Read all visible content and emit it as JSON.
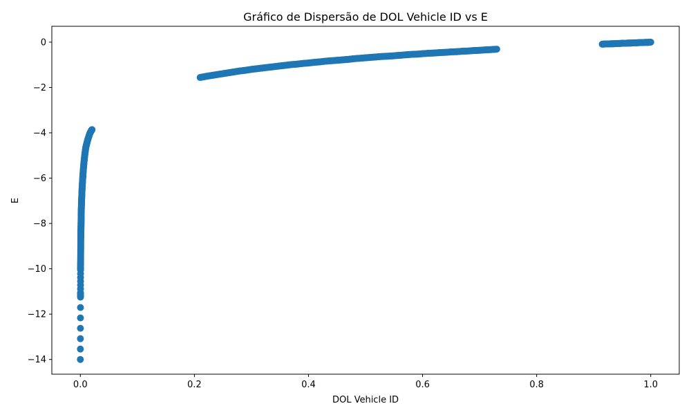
{
  "chart_data": {
    "type": "scatter",
    "title": "Gráfico de Dispersão de DOL Vehicle ID vs E",
    "xlabel": "DOL Vehicle ID",
    "ylabel": "E",
    "xlim": [
      -0.05,
      1.05
    ],
    "ylim": [
      -14.65,
      0.7
    ],
    "xticks": [
      0.0,
      0.2,
      0.4,
      0.6,
      0.8,
      1.0
    ],
    "xtick_labels": [
      "0.0",
      "0.2",
      "0.4",
      "0.6",
      "0.8",
      "1.0"
    ],
    "yticks": [
      0,
      -2,
      -4,
      -6,
      -8,
      -10,
      -12,
      -14
    ],
    "ytick_labels": [
      "0",
      "−2",
      "−4",
      "−6",
      "−8",
      "−10",
      "−12",
      "−14"
    ],
    "grid": false,
    "marker_color": "#1f77b4",
    "series": [
      {
        "values_approx": "three clusters: x≈0–0.02 with E rising from −14 to −3.9; x≈0.21–0.73 with E=ln(x); x≈0.92–1.0 with E≈−0.08 to 0",
        "points": [
          [
            0.0,
            -14.0
          ],
          [
            0.0003,
            -11.25
          ],
          [
            0.0003,
            -11.05
          ],
          [
            0.0004,
            -10.05
          ],
          [
            0.0004,
            -9.9
          ],
          [
            0.0005,
            -9.65
          ],
          [
            0.0006,
            -9.3
          ],
          [
            0.0007,
            -9.0
          ],
          [
            0.0008,
            -8.65
          ],
          [
            0.0009,
            -8.5
          ],
          [
            0.001,
            -8.35
          ],
          [
            0.0011,
            -8.2
          ],
          [
            0.0012,
            -8.05
          ],
          [
            0.0013,
            -7.9
          ],
          [
            0.0014,
            -7.75
          ],
          [
            0.0015,
            -7.6
          ],
          [
            0.0016,
            -7.45
          ],
          [
            0.0018,
            -7.3
          ],
          [
            0.002,
            -7.1
          ],
          [
            0.0022,
            -6.95
          ],
          [
            0.0025,
            -6.8
          ],
          [
            0.0028,
            -6.6
          ],
          [
            0.0031,
            -6.45
          ],
          [
            0.0034,
            -6.3
          ],
          [
            0.0038,
            -6.15
          ],
          [
            0.0042,
            -6.0
          ],
          [
            0.0046,
            -5.85
          ],
          [
            0.005,
            -5.7
          ],
          [
            0.0055,
            -5.55
          ],
          [
            0.006,
            -5.4
          ],
          [
            0.0066,
            -5.25
          ],
          [
            0.0072,
            -5.1
          ],
          [
            0.0079,
            -4.95
          ],
          [
            0.0087,
            -4.8
          ],
          [
            0.0095,
            -4.65
          ],
          [
            0.0105,
            -4.55
          ],
          [
            0.0115,
            -4.45
          ],
          [
            0.0125,
            -4.35
          ],
          [
            0.0137,
            -4.25
          ],
          [
            0.015,
            -4.15
          ],
          [
            0.0163,
            -4.05
          ],
          [
            0.0178,
            -3.97
          ],
          [
            0.0195,
            -3.89
          ],
          [
            0.0205,
            -3.86
          ],
          [
            0.21,
            -1.56
          ],
          [
            0.22,
            -1.51
          ],
          [
            0.23,
            -1.47
          ],
          [
            0.24,
            -1.43
          ],
          [
            0.25,
            -1.39
          ],
          [
            0.26,
            -1.35
          ],
          [
            0.27,
            -1.31
          ],
          [
            0.28,
            -1.27
          ],
          [
            0.29,
            -1.24
          ],
          [
            0.3,
            -1.2
          ],
          [
            0.31,
            -1.17
          ],
          [
            0.32,
            -1.14
          ],
          [
            0.33,
            -1.11
          ],
          [
            0.34,
            -1.08
          ],
          [
            0.35,
            -1.05
          ],
          [
            0.36,
            -1.02
          ],
          [
            0.37,
            -0.99
          ],
          [
            0.38,
            -0.97
          ],
          [
            0.39,
            -0.94
          ],
          [
            0.4,
            -0.92
          ],
          [
            0.41,
            -0.89
          ],
          [
            0.42,
            -0.87
          ],
          [
            0.43,
            -0.84
          ],
          [
            0.44,
            -0.82
          ],
          [
            0.45,
            -0.8
          ],
          [
            0.46,
            -0.78
          ],
          [
            0.47,
            -0.76
          ],
          [
            0.48,
            -0.73
          ],
          [
            0.49,
            -0.71
          ],
          [
            0.5,
            -0.69
          ],
          [
            0.51,
            -0.67
          ],
          [
            0.52,
            -0.65
          ],
          [
            0.53,
            -0.63
          ],
          [
            0.54,
            -0.62
          ],
          [
            0.55,
            -0.6
          ],
          [
            0.56,
            -0.58
          ],
          [
            0.57,
            -0.56
          ],
          [
            0.58,
            -0.54
          ],
          [
            0.59,
            -0.53
          ],
          [
            0.6,
            -0.51
          ],
          [
            0.61,
            -0.49
          ],
          [
            0.62,
            -0.48
          ],
          [
            0.63,
            -0.46
          ],
          [
            0.64,
            -0.45
          ],
          [
            0.65,
            -0.43
          ],
          [
            0.66,
            -0.42
          ],
          [
            0.67,
            -0.4
          ],
          [
            0.68,
            -0.39
          ],
          [
            0.69,
            -0.37
          ],
          [
            0.7,
            -0.36
          ],
          [
            0.71,
            -0.34
          ],
          [
            0.72,
            -0.33
          ],
          [
            0.73,
            -0.31
          ],
          [
            0.915,
            -0.09
          ],
          [
            0.92,
            -0.08
          ],
          [
            0.925,
            -0.08
          ],
          [
            0.93,
            -0.07
          ],
          [
            0.935,
            -0.07
          ],
          [
            0.94,
            -0.06
          ],
          [
            0.945,
            -0.06
          ],
          [
            0.95,
            -0.05
          ],
          [
            0.955,
            -0.05
          ],
          [
            0.96,
            -0.04
          ],
          [
            0.965,
            -0.04
          ],
          [
            0.97,
            -0.03
          ],
          [
            0.975,
            -0.03
          ],
          [
            0.98,
            -0.02
          ],
          [
            0.985,
            -0.02
          ],
          [
            0.99,
            -0.01
          ],
          [
            0.995,
            -0.01
          ],
          [
            1.0,
            0.0
          ]
        ]
      }
    ]
  }
}
